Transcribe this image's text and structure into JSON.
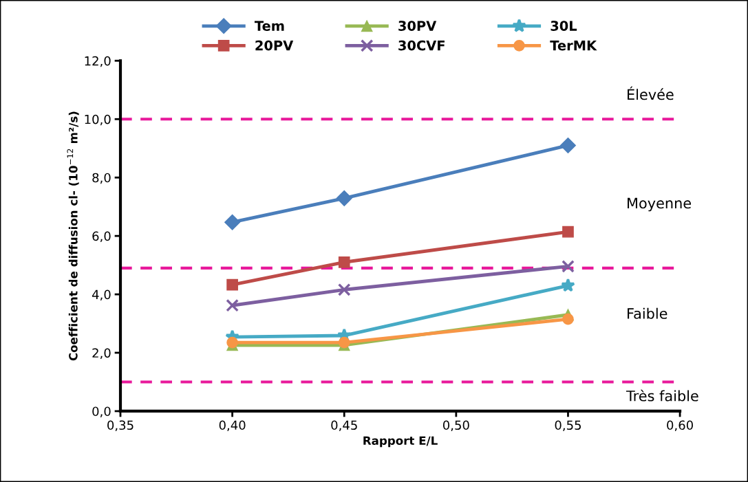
{
  "chart_data": {
    "type": "line",
    "xlabel": "Rapport E/L",
    "ylabel": "Coefficient de diffusion cl- (10$^{−12}$ m²/s)",
    "x": [
      0.4,
      0.45,
      0.55
    ],
    "xlim": [
      0.35,
      0.6
    ],
    "xticks": [
      {
        "value": 0.35,
        "label": "0,35"
      },
      {
        "value": 0.4,
        "label": "0,40"
      },
      {
        "value": 0.45,
        "label": "0,45"
      },
      {
        "value": 0.5,
        "label": "0,50"
      },
      {
        "value": 0.55,
        "label": "0,55"
      },
      {
        "value": 0.6,
        "label": "0,60"
      }
    ],
    "ylim": [
      0,
      12
    ],
    "yticks": [
      {
        "value": 0,
        "label": "0,0"
      },
      {
        "value": 2,
        "label": "2,0"
      },
      {
        "value": 4,
        "label": "4,0"
      },
      {
        "value": 6,
        "label": "6,0"
      },
      {
        "value": 8,
        "label": "8,0"
      },
      {
        "value": 10,
        "label": "10,0"
      },
      {
        "value": 12,
        "label": "12,0"
      }
    ],
    "series": [
      {
        "name": "Tem",
        "color": "#4a7ebb",
        "marker": "diamond",
        "values": [
          6.47,
          7.29,
          9.1
        ]
      },
      {
        "name": "20PV",
        "color": "#be4b48",
        "marker": "square",
        "values": [
          4.33,
          5.1,
          6.14
        ]
      },
      {
        "name": "30PV",
        "color": "#98b954",
        "marker": "triangle",
        "values": [
          2.26,
          2.26,
          3.3
        ]
      },
      {
        "name": "30CVF",
        "color": "#7d5fa0",
        "marker": "cross",
        "values": [
          3.62,
          4.16,
          4.96
        ]
      },
      {
        "name": "30L",
        "color": "#46aac5",
        "marker": "star",
        "values": [
          2.54,
          2.59,
          4.3
        ]
      },
      {
        "name": "TerMK",
        "color": "#f79646",
        "marker": "circle",
        "values": [
          2.35,
          2.35,
          3.15
        ]
      }
    ],
    "ref_lines": [
      {
        "axis": "y",
        "value": 10,
        "color": "#e8199b",
        "line_style": "dashed"
      },
      {
        "axis": "y",
        "value": 4.9,
        "color": "#e8199b",
        "line_style": "dashed"
      },
      {
        "axis": "y",
        "value": 1,
        "color": "#e8199b",
        "line_style": "dashed"
      }
    ],
    "annotations": [
      "Élevée",
      "Moyenne",
      "Faible",
      "Très faible"
    ],
    "grid": false,
    "legend": "top",
    "line_style": "solid"
  }
}
